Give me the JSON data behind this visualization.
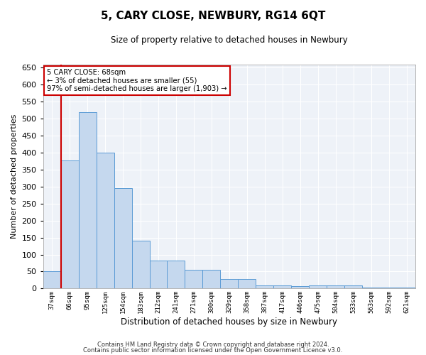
{
  "title": "5, CARY CLOSE, NEWBURY, RG14 6QT",
  "subtitle": "Size of property relative to detached houses in Newbury",
  "xlabel": "Distribution of detached houses by size in Newbury",
  "ylabel": "Number of detached properties",
  "bar_color": "#c5d8ee",
  "bar_edge_color": "#5b9bd5",
  "bg_color": "#eef2f8",
  "grid_color": "#ffffff",
  "vline_color": "#cc0000",
  "annotation_box_color": "#cc0000",
  "annotation_lines": [
    "5 CARY CLOSE: 68sqm",
    "← 3% of detached houses are smaller (55)",
    "97% of semi-detached houses are larger (1,903) →"
  ],
  "categories": [
    "37sqm",
    "66sqm",
    "95sqm",
    "125sqm",
    "154sqm",
    "183sqm",
    "212sqm",
    "241sqm",
    "271sqm",
    "300sqm",
    "329sqm",
    "358sqm",
    "387sqm",
    "417sqm",
    "446sqm",
    "475sqm",
    "504sqm",
    "533sqm",
    "563sqm",
    "592sqm",
    "621sqm"
  ],
  "values": [
    50,
    378,
    519,
    401,
    295,
    141,
    82,
    82,
    55,
    55,
    29,
    29,
    10,
    10,
    7,
    10,
    10,
    10,
    4,
    4,
    2
  ],
  "ylim": [
    0,
    660
  ],
  "yticks": [
    0,
    50,
    100,
    150,
    200,
    250,
    300,
    350,
    400,
    450,
    500,
    550,
    600,
    650
  ],
  "footnote1": "Contains HM Land Registry data © Crown copyright and database right 2024.",
  "footnote2": "Contains public sector information licensed under the Open Government Licence v3.0."
}
